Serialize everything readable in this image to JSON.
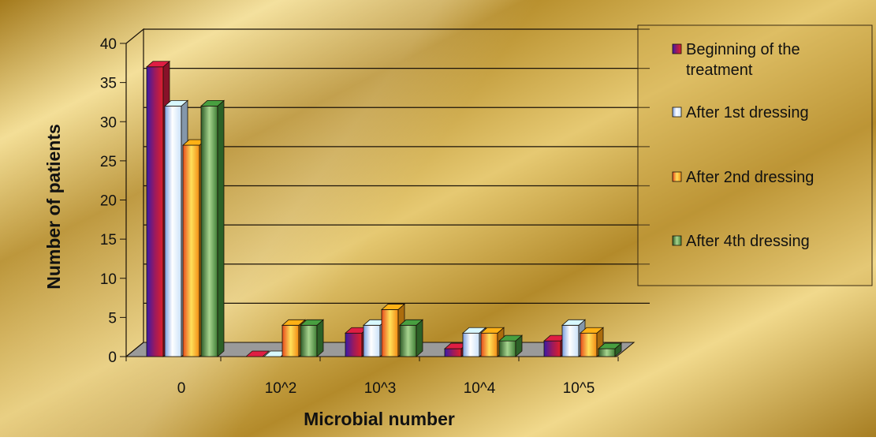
{
  "chart_data": {
    "type": "bar",
    "categories": [
      "0",
      "10^2",
      "10^3",
      "10^4",
      "10^5"
    ],
    "series": [
      {
        "name": "Beginning of the treatment",
        "values": [
          37,
          0,
          3,
          1,
          2
        ]
      },
      {
        "name": "After 1st dressing",
        "values": [
          32,
          0,
          4,
          3,
          4
        ]
      },
      {
        "name": "After 2nd dressing",
        "values": [
          27,
          4,
          6,
          3,
          3
        ]
      },
      {
        "name": "After 4th dressing",
        "values": [
          32,
          4,
          4,
          2,
          1
        ]
      }
    ],
    "legend_lines": [
      [
        "Beginning of the",
        "treatment"
      ],
      [
        "After 1st dressing"
      ],
      [
        "After 2nd dressing"
      ],
      [
        "After 4th dressing"
      ]
    ],
    "xlabel": "Microbial number",
    "ylabel": "Number of patients",
    "ylim": [
      0,
      40
    ],
    "yticks": [
      0,
      5,
      10,
      15,
      20,
      25,
      30,
      35,
      40
    ],
    "grid": true,
    "legend_position": "right",
    "colors": {
      "series": [
        "#c21a3a",
        "#bcd8f4",
        "#f59a12",
        "#3f8a38"
      ],
      "background": "#c9a23c",
      "floor": "#8f8f8f"
    },
    "style": "3d-clustered-column"
  }
}
